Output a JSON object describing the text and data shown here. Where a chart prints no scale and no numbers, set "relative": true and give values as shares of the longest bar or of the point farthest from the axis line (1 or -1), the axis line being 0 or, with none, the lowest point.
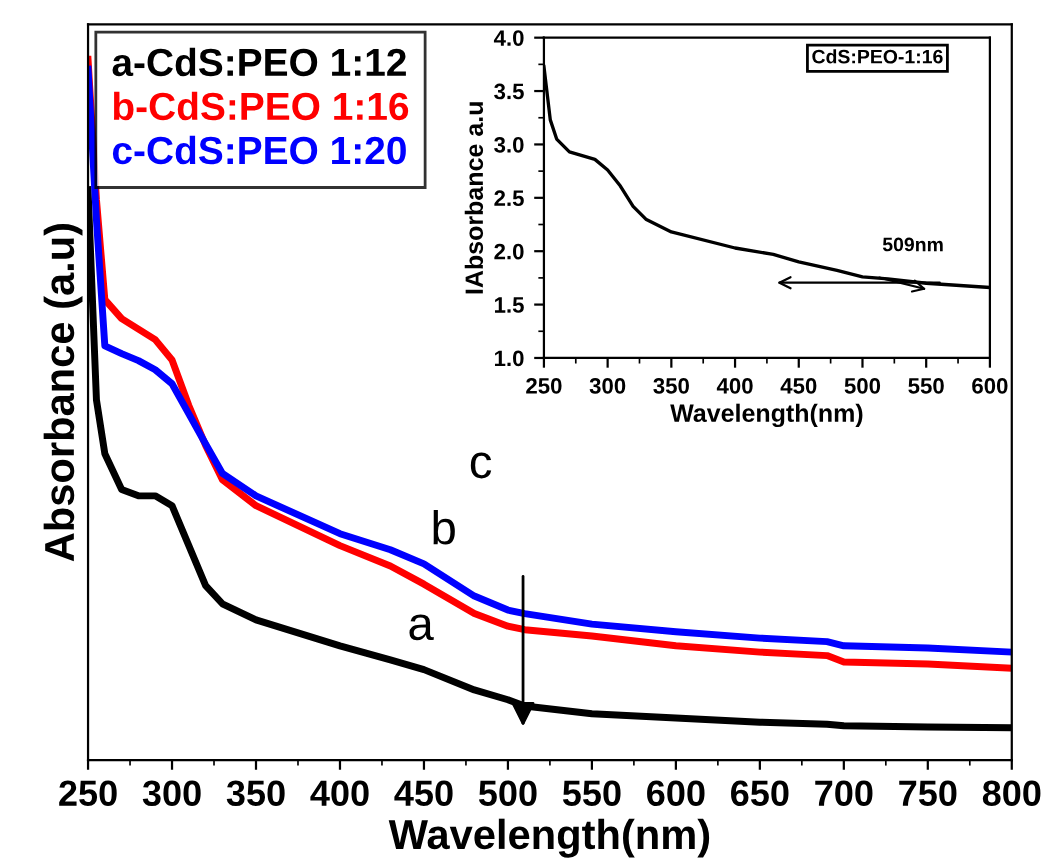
{
  "chart_data": [
    {
      "type": "line",
      "xlabel": "Wavelength(nm)",
      "ylabel": "Absorbance (a.u)",
      "relative": true,
      "xlim": [
        250,
        800
      ],
      "xticks": [
        250,
        300,
        350,
        400,
        450,
        500,
        550,
        600,
        650,
        700,
        750,
        800
      ],
      "tick_labels": "x",
      "legend": "top left",
      "grid": false,
      "x": [
        250,
        255,
        260,
        270,
        280,
        290,
        300,
        310,
        320,
        330,
        350,
        400,
        430,
        450,
        480,
        500,
        510,
        550,
        600,
        650,
        690,
        700,
        750,
        800
      ],
      "series": [
        {
          "name": "a-CdS:PEO 1:12",
          "color": "#000000",
          "values": [
            0.814,
            0.514,
            0.437,
            0.386,
            0.377,
            0.377,
            0.363,
            0.306,
            0.249,
            0.223,
            0.2,
            0.163,
            0.143,
            0.129,
            0.1,
            0.086,
            0.077,
            0.066,
            0.06,
            0.054,
            0.051,
            0.049,
            0.047,
            0.046
          ]
        },
        {
          "name": "b-CdS:PEO 1:16",
          "color": "#ff0000",
          "values": [
            1.0,
            0.8,
            0.657,
            0.63,
            0.615,
            0.6,
            0.571,
            0.506,
            0.449,
            0.4,
            0.363,
            0.306,
            0.277,
            0.251,
            0.209,
            0.191,
            0.186,
            0.177,
            0.163,
            0.154,
            0.149,
            0.14,
            0.137,
            0.131
          ]
        },
        {
          "name": "c-CdS:PEO 1:20",
          "color": "#0000ff",
          "values": [
            0.986,
            0.771,
            0.591,
            0.58,
            0.57,
            0.557,
            0.537,
            0.494,
            0.451,
            0.409,
            0.377,
            0.323,
            0.3,
            0.28,
            0.234,
            0.214,
            0.209,
            0.194,
            0.183,
            0.174,
            0.169,
            0.163,
            0.16,
            0.154
          ]
        }
      ],
      "annotations": [
        "a",
        "b",
        "c"
      ]
    },
    {
      "type": "line",
      "xlabel": "Wavelength(nm)",
      "ylabel": "IAbsorbance a.u",
      "xlim": [
        250,
        600
      ],
      "ylim": [
        1.0,
        4.0
      ],
      "xticks": [
        250,
        300,
        350,
        400,
        450,
        500,
        550,
        600
      ],
      "yticks": [
        {
          "value": 1.0,
          "label": "1.0"
        },
        1.5,
        {
          "value": 2.0,
          "label": "2.0"
        },
        2.5,
        {
          "value": 3.0,
          "label": "3.0"
        },
        3.5,
        {
          "value": 4.0,
          "label": "4.0"
        }
      ],
      "legend": false,
      "grid": false,
      "x": [
        250,
        255,
        260,
        270,
        290,
        300,
        310,
        320,
        330,
        350,
        400,
        430,
        450,
        480,
        500,
        520,
        550,
        600
      ],
      "series": [
        {
          "color": "#000000",
          "values": [
            3.73,
            3.23,
            3.05,
            2.93,
            2.86,
            2.76,
            2.61,
            2.42,
            2.3,
            2.18,
            2.03,
            1.97,
            1.9,
            1.82,
            1.76,
            1.74,
            1.7,
            1.66
          ]
        }
      ],
      "annotations": [
        "CdS:PEO-1:16",
        {
          "text": "509nm",
          "x": 509,
          "y": 1.74
        }
      ]
    }
  ]
}
